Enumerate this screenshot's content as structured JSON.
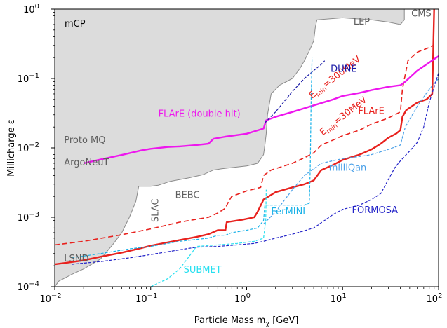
{
  "chart_data": {
    "type": "line",
    "title": "",
    "panel_label": "mCP",
    "xlabel": "Particle Mass m",
    "xlabel_sub": "χ",
    "xlabel_unit": "[GeV]",
    "ylabel": "Millicharge ε",
    "xscale": "log",
    "yscale": "log",
    "xlim": [
      0.01,
      100
    ],
    "ylim": [
      0.0001,
      1
    ],
    "xticks": [
      {
        "value": 0.01,
        "base": "10",
        "exp": "−2"
      },
      {
        "value": 0.1,
        "base": "10",
        "exp": "−1"
      },
      {
        "value": 1,
        "base": "10",
        "exp": "0"
      },
      {
        "value": 10,
        "base": "10",
        "exp": "1"
      },
      {
        "value": 100,
        "base": "10",
        "exp": "2"
      }
    ],
    "yticks": [
      {
        "value": 0.0001,
        "base": "10",
        "exp": "−4"
      },
      {
        "value": 0.001,
        "base": "10",
        "exp": "−3"
      },
      {
        "value": 0.01,
        "base": "10",
        "exp": "−2"
      },
      {
        "value": 0.1,
        "base": "10",
        "exp": "−1"
      },
      {
        "value": 1,
        "base": "10",
        "exp": "0"
      }
    ],
    "excluded_region": {
      "fill": "#dcdcdc",
      "edge": "#8a8a8a",
      "boundary": [
        [
          0.01,
          0.0001
        ],
        [
          0.011,
          0.00012
        ],
        [
          0.015,
          0.00015
        ],
        [
          0.02,
          0.00018
        ],
        [
          0.03,
          0.00025
        ],
        [
          0.04,
          0.0004
        ],
        [
          0.05,
          0.0006
        ],
        [
          0.06,
          0.001
        ],
        [
          0.07,
          0.0017
        ],
        [
          0.075,
          0.0028
        ],
        [
          0.09,
          0.0028
        ],
        [
          0.1,
          0.0028
        ],
        [
          0.12,
          0.0029
        ],
        [
          0.16,
          0.0033
        ],
        [
          0.25,
          0.0037
        ],
        [
          0.35,
          0.0041
        ],
        [
          0.45,
          0.0048
        ],
        [
          0.55,
          0.005
        ],
        [
          0.7,
          0.0052
        ],
        [
          1.0,
          0.0055
        ],
        [
          1.3,
          0.006
        ],
        [
          1.5,
          0.008
        ],
        [
          1.55,
          0.011
        ],
        [
          1.6,
          0.016
        ],
        [
          1.65,
          0.03
        ],
        [
          1.8,
          0.06
        ],
        [
          2.2,
          0.08
        ],
        [
          2.6,
          0.09
        ],
        [
          3.0,
          0.1
        ],
        [
          3.6,
          0.14
        ],
        [
          4.0,
          0.18
        ],
        [
          4.5,
          0.25
        ],
        [
          5.0,
          0.35
        ],
        [
          5.2,
          0.55
        ],
        [
          5.4,
          0.7
        ],
        [
          10,
          0.75
        ],
        [
          20,
          0.7
        ],
        [
          30,
          0.65
        ],
        [
          40,
          0.6
        ],
        [
          44,
          0.7
        ],
        [
          44,
          1.0
        ],
        [
          0.01,
          1.0
        ]
      ]
    },
    "region_labels": [
      {
        "text": "Proto MQ",
        "x": 0.0125,
        "y": 0.0117
      },
      {
        "text": "ArgoNeuT",
        "x": 0.0125,
        "y": 0.0056
      },
      {
        "text": "SLAC",
        "x": 0.12,
        "y": 0.00085,
        "rotate": -90
      },
      {
        "text": "BEBC",
        "x": 0.18,
        "y": 0.0019
      },
      {
        "text": "LSND",
        "x": 0.0125,
        "y": 0.00023
      },
      {
        "text": "LEP",
        "x": 13,
        "y": 0.6
      },
      {
        "text": "CMS",
        "x": 52,
        "y": 0.78
      }
    ],
    "series": [
      {
        "name": "FLArE",
        "label_text": "FLArE",
        "color": "#e8211d",
        "dash": "",
        "width": 2.4,
        "label_x": 14.5,
        "label_y": 0.031,
        "points": [
          [
            0.01,
            0.00021
          ],
          [
            0.013,
            0.00022
          ],
          [
            0.02,
            0.00024
          ],
          [
            0.03,
            0.00027
          ],
          [
            0.05,
            0.00031
          ],
          [
            0.08,
            0.00036
          ],
          [
            0.1,
            0.00039
          ],
          [
            0.2,
            0.00047
          ],
          [
            0.3,
            0.00052
          ],
          [
            0.4,
            0.00057
          ],
          [
            0.5,
            0.00065
          ],
          [
            0.6,
            0.00065
          ],
          [
            0.62,
            0.00085
          ],
          [
            0.9,
            0.00092
          ],
          [
            1.2,
            0.001
          ],
          [
            1.3,
            0.0012
          ],
          [
            1.5,
            0.0018
          ],
          [
            2,
            0.0023
          ],
          [
            3,
            0.0027
          ],
          [
            4,
            0.003
          ],
          [
            5,
            0.0034
          ],
          [
            6,
            0.0048
          ],
          [
            8,
            0.0057
          ],
          [
            10,
            0.0067
          ],
          [
            15,
            0.008
          ],
          [
            20,
            0.0095
          ],
          [
            25,
            0.0115
          ],
          [
            30,
            0.014
          ],
          [
            36,
            0.016
          ],
          [
            40,
            0.018
          ],
          [
            42,
            0.028
          ],
          [
            46,
            0.035
          ],
          [
            60,
            0.045
          ],
          [
            75,
            0.05
          ],
          [
            86,
            0.06
          ],
          [
            88,
            0.25
          ],
          [
            90,
            1.0
          ]
        ]
      },
      {
        "name": "FLArE (Emin=300MeV)",
        "label_text": "E",
        "label_sub": "min",
        "label_rest": "=300MeV",
        "label_rot": -38,
        "color": "#e8211d",
        "dash": "7,4",
        "width": 1.6,
        "label_x": 4.8,
        "label_y": 0.051,
        "points": [
          [
            0.01,
            0.0004
          ],
          [
            0.02,
            0.00045
          ],
          [
            0.05,
            0.00056
          ],
          [
            0.1,
            0.00068
          ],
          [
            0.2,
            0.00085
          ],
          [
            0.4,
            0.001
          ],
          [
            0.5,
            0.00115
          ],
          [
            0.6,
            0.00135
          ],
          [
            0.65,
            0.0017
          ],
          [
            0.7,
            0.002
          ],
          [
            1.0,
            0.0024
          ],
          [
            1.4,
            0.0027
          ],
          [
            1.5,
            0.004
          ],
          [
            1.8,
            0.0048
          ],
          [
            3,
            0.006
          ],
          [
            4,
            0.0072
          ],
          [
            5,
            0.0085
          ],
          [
            6,
            0.011
          ],
          [
            8,
            0.013
          ],
          [
            10,
            0.015
          ],
          [
            15,
            0.018
          ],
          [
            20,
            0.022
          ],
          [
            30,
            0.027
          ],
          [
            40,
            0.033
          ],
          [
            42,
            0.07
          ],
          [
            48,
            0.18
          ],
          [
            60,
            0.24
          ],
          [
            80,
            0.28
          ],
          [
            88,
            0.3
          ]
        ]
      },
      {
        "name": "FLArE (Emin=30MeV)",
        "label_text": "E",
        "label_sub": "min",
        "label_rest": "=30MeV",
        "label_rot": -38,
        "color": "#e8211d",
        "dash": "",
        "width": 0,
        "label_x": 6.2,
        "label_y": 0.015,
        "points": []
      },
      {
        "name": "FLArE (double hit)",
        "label_text": "FLArE (double hit)",
        "color": "#ee17ee",
        "dash": "",
        "width": 2.4,
        "label_x": 0.12,
        "label_y": 0.028,
        "points": [
          [
            0.02,
            0.006
          ],
          [
            0.03,
            0.0068
          ],
          [
            0.05,
            0.0079
          ],
          [
            0.08,
            0.0092
          ],
          [
            0.1,
            0.0097
          ],
          [
            0.15,
            0.0103
          ],
          [
            0.2,
            0.0105
          ],
          [
            0.3,
            0.011
          ],
          [
            0.4,
            0.0115
          ],
          [
            0.45,
            0.0135
          ],
          [
            0.6,
            0.0145
          ],
          [
            1.0,
            0.016
          ],
          [
            1.5,
            0.019
          ],
          [
            1.6,
            0.025
          ],
          [
            2,
            0.028
          ],
          [
            3,
            0.033
          ],
          [
            5,
            0.041
          ],
          [
            8,
            0.05
          ],
          [
            10,
            0.056
          ],
          [
            15,
            0.062
          ],
          [
            20,
            0.068
          ],
          [
            30,
            0.076
          ],
          [
            40,
            0.08
          ],
          [
            45,
            0.09
          ],
          [
            60,
            0.13
          ],
          [
            80,
            0.17
          ],
          [
            100,
            0.21
          ]
        ]
      },
      {
        "name": "DUNE",
        "label_text": "DUNE",
        "color": "#1a1aa6",
        "dash": "4,2",
        "width": 1.2,
        "label_x": 7.5,
        "label_y": 0.125,
        "points": [
          [
            1.55,
            0.023
          ],
          [
            2,
            0.033
          ],
          [
            3,
            0.065
          ],
          [
            4,
            0.1
          ],
          [
            5,
            0.13
          ],
          [
            6,
            0.16
          ],
          [
            6.5,
            0.18
          ]
        ]
      },
      {
        "name": "milliQan",
        "label_text": "milliQan",
        "color": "#4aa0e8",
        "dash": "4,2",
        "width": 1.2,
        "label_x": 7.2,
        "label_y": 0.0047,
        "points": [
          [
            1.5,
            0.0008
          ],
          [
            2,
            0.0012
          ],
          [
            3,
            0.0025
          ],
          [
            4,
            0.004
          ],
          [
            5,
            0.005
          ],
          [
            6,
            0.006
          ],
          [
            10,
            0.007
          ],
          [
            15,
            0.0075
          ],
          [
            20,
            0.008
          ],
          [
            30,
            0.0095
          ],
          [
            40,
            0.011
          ],
          [
            45,
            0.02
          ],
          [
            60,
            0.04
          ],
          [
            80,
            0.07
          ],
          [
            100,
            0.1
          ]
        ]
      },
      {
        "name": "FerMINI",
        "label_text": "FerMINI",
        "color": "#1ab2e8",
        "dash": "4,2",
        "width": 1.2,
        "label_x": 1.8,
        "label_y": 0.0011,
        "points": [
          [
            0.015,
            0.00026
          ],
          [
            0.03,
            0.0003
          ],
          [
            0.06,
            0.00035
          ],
          [
            0.1,
            0.00038
          ],
          [
            0.2,
            0.00045
          ],
          [
            0.4,
            0.0005
          ],
          [
            0.5,
            0.00055
          ],
          [
            0.6,
            0.00055
          ],
          [
            0.7,
            0.0006
          ],
          [
            1.0,
            0.00065
          ],
          [
            1.3,
            0.0007
          ],
          [
            1.5,
            0.0009
          ],
          [
            1.55,
            0.0015
          ],
          [
            2,
            0.0015
          ],
          [
            3,
            0.0015
          ],
          [
            4,
            0.0015
          ],
          [
            4.5,
            0.0016
          ],
          [
            4.6,
            0.005
          ],
          [
            4.7,
            0.05
          ],
          [
            4.8,
            0.2
          ]
        ]
      },
      {
        "name": "SUBMET",
        "label_text": "SUBMET",
        "color": "#28e0f0",
        "dash": "4,2",
        "width": 1.2,
        "label_x": 0.22,
        "label_y": 0.00016,
        "points": [
          [
            0.1,
            0.0001
          ],
          [
            0.15,
            0.00013
          ],
          [
            0.2,
            0.00018
          ],
          [
            0.25,
            0.00027
          ],
          [
            0.3,
            0.00038
          ],
          [
            0.5,
            0.0004
          ],
          [
            0.8,
            0.00042
          ],
          [
            1.2,
            0.00045
          ],
          [
            1.5,
            0.0005
          ],
          [
            1.58,
            0.0009
          ],
          [
            1.6,
            0.0025
          ]
        ]
      },
      {
        "name": "FORMOSA",
        "label_text": "FORMOSA",
        "color": "#2222c8",
        "dash": "4,2",
        "width": 1.2,
        "label_x": 12.5,
        "label_y": 0.00115,
        "points": [
          [
            0.015,
            0.00021
          ],
          [
            0.03,
            0.00023
          ],
          [
            0.06,
            0.00026
          ],
          [
            0.1,
            0.00029
          ],
          [
            0.2,
            0.00034
          ],
          [
            0.3,
            0.00037
          ],
          [
            0.5,
            0.00038
          ],
          [
            0.8,
            0.0004
          ],
          [
            1.2,
            0.00042
          ],
          [
            1.5,
            0.00045
          ],
          [
            2,
            0.0005
          ],
          [
            3,
            0.00057
          ],
          [
            5,
            0.0007
          ],
          [
            8,
            0.0011
          ],
          [
            10,
            0.0013
          ],
          [
            15,
            0.0015
          ],
          [
            20,
            0.0018
          ],
          [
            25,
            0.0022
          ],
          [
            30,
            0.0035
          ],
          [
            35,
            0.0052
          ],
          [
            40,
            0.0065
          ],
          [
            50,
            0.009
          ],
          [
            60,
            0.012
          ],
          [
            70,
            0.02
          ],
          [
            80,
            0.045
          ],
          [
            100,
            0.12
          ]
        ]
      }
    ]
  }
}
